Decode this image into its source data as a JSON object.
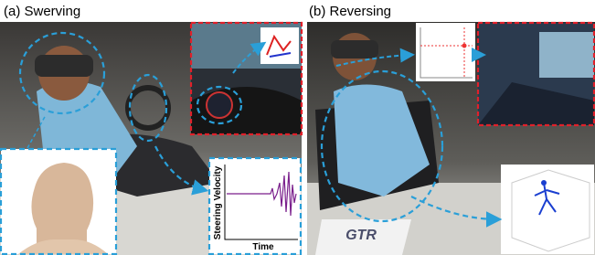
{
  "panels": [
    {
      "label": "(a) Swerving",
      "inset": {
        "y_label": "Steering Velocity",
        "x_label": "Time"
      }
    },
    {
      "label": "(b) Reversing",
      "logo": "GTR"
    }
  ]
}
